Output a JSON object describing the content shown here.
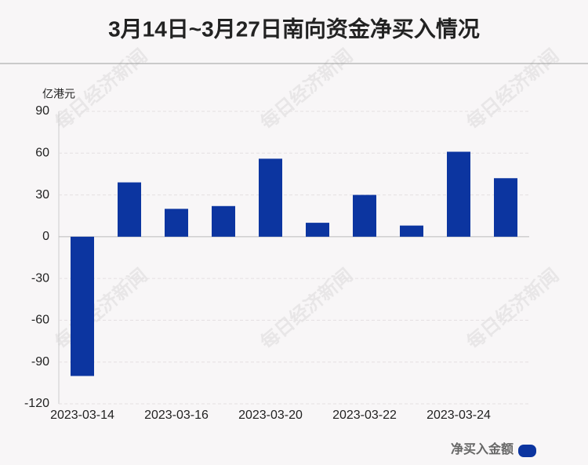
{
  "chart_data": {
    "type": "bar",
    "title": "3月14日~3月27日南向资金净买入情况",
    "y_axis_label": "亿港元",
    "watermark": "每日经济新闻",
    "categories": [
      "2023-03-14",
      null,
      "2023-03-16",
      null,
      "2023-03-20",
      null,
      "2023-03-22",
      null,
      "2023-03-24",
      null
    ],
    "series": [
      {
        "name": "净买入金额",
        "color": "#0c35a0",
        "values": [
          -100,
          39,
          20,
          22,
          56,
          10,
          30,
          8,
          61,
          42
        ]
      }
    ],
    "ylim": [
      -120,
      90
    ],
    "yticks": [
      -120,
      -90,
      -60,
      -30,
      0,
      30,
      60,
      90
    ],
    "grid": true,
    "legend": "bottom-right"
  }
}
